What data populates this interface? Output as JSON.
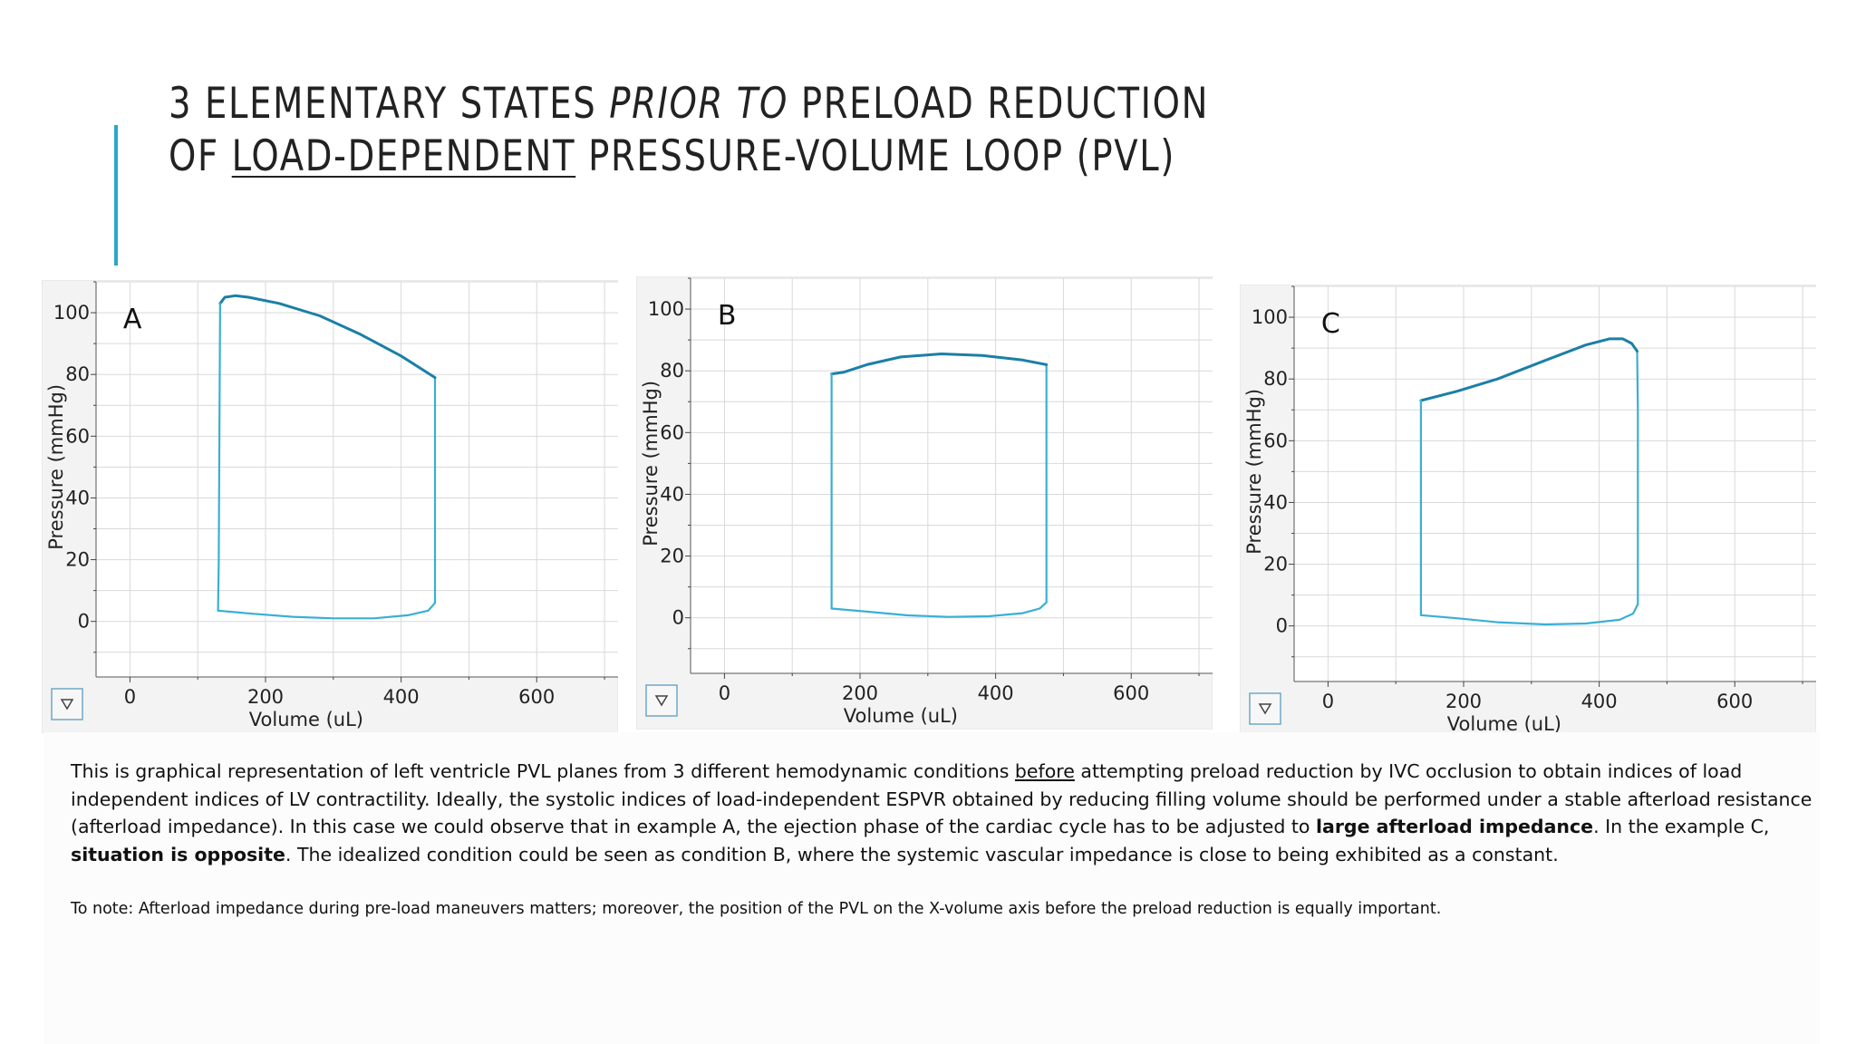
{
  "slide": {
    "title_line1_a": "3 ELEMENTARY STATES ",
    "title_line1_em": "PRIOR TO",
    "title_line1_b": " PRELOAD REDUCTION",
    "title_line2_a": "OF ",
    "title_line2_u": "LOAD-DEPENDENT",
    "title_line2_b": " PRESSURE-VOLUME LOOP (PVL)",
    "caption": {
      "t1": "This is graphical representation of left ventricle PVL planes from 3 different hemodynamic conditions ",
      "u1": "before",
      "t2": " attempting preload reduction by IVC occlusion to obtain indices of load independent indices of LV contractility. Ideally, the systolic indices of load-independent ESPVR obtained by reducing filling volume should be performed under a stable afterload resistance (afterload impedance). In this case we could observe that in example A, the ejection phase of the cardiac cycle has to be adjusted to ",
      "b1": "large afterload impedance",
      "t3": ". In the example C, ",
      "b2": "situation is opposite",
      "t4": ". The idealized condition could be seen as condition B, where the systemic vascular impedance is close to being exhibited as a constant."
    },
    "note": "To note: Afterload impedance during pre-load maneuvers matters; moreover, the position of the PVL on the X-volume axis before the preload reduction is equally important."
  },
  "colors": {
    "accent": "#2aa8c9",
    "loop_light": "#3aafd4",
    "loop_dark": "#1b7fa6",
    "grid": "#d9d9d9",
    "panel": "#f3f3f3"
  },
  "chart_data": [
    {
      "type": "line",
      "panel_label": "A",
      "xlabel": "Volume  (uL)",
      "ylabel": "Pressure  (mmHg)",
      "xlim": [
        -50,
        720
      ],
      "ylim": [
        -18,
        110
      ],
      "xticks": [
        0,
        200,
        400,
        600
      ],
      "yticks": [
        0,
        20,
        40,
        60,
        80,
        100
      ],
      "menu_icon": "dropdown-triangle-icon",
      "series": [
        {
          "role": "filling",
          "color": "#3aafd4",
          "points": [
            [
              130,
              3.5
            ],
            [
              180,
              2.5
            ],
            [
              240,
              1.5
            ],
            [
              300,
              1
            ],
            [
              360,
              1
            ],
            [
              410,
              2
            ],
            [
              440,
              3.5
            ],
            [
              450,
              6
            ]
          ]
        },
        {
          "role": "isovolumic-contraction",
          "color": "#3aafd4",
          "points": [
            [
              450,
              6
            ],
            [
              450,
              30
            ],
            [
              450,
              60
            ],
            [
              450,
              79
            ]
          ]
        },
        {
          "role": "ejection",
          "color": "#1b7fa6",
          "points": [
            [
              450,
              79
            ],
            [
              400,
              86
            ],
            [
              340,
              93
            ],
            [
              280,
              99
            ],
            [
              220,
              103
            ],
            [
              175,
              105
            ],
            [
              155,
              105.5
            ],
            [
              140,
              105
            ],
            [
              133,
              103
            ]
          ]
        },
        {
          "role": "isovolumic-relaxation",
          "color": "#3aafd4",
          "points": [
            [
              133,
              103
            ],
            [
              132,
              60
            ],
            [
              131,
              20
            ],
            [
              130,
              3.5
            ]
          ]
        }
      ]
    },
    {
      "type": "line",
      "panel_label": "B",
      "xlabel": "Volume  (uL)",
      "ylabel": "Pressure  (mmHg)",
      "xlim": [
        -50,
        720
      ],
      "ylim": [
        -18,
        110
      ],
      "xticks": [
        0,
        200,
        400,
        600
      ],
      "yticks": [
        0,
        20,
        40,
        60,
        80,
        100
      ],
      "menu_icon": "dropdown-triangle-icon",
      "series": [
        {
          "role": "filling",
          "color": "#3aafd4",
          "points": [
            [
              158,
              3
            ],
            [
              210,
              2
            ],
            [
              270,
              0.8
            ],
            [
              330,
              0.3
            ],
            [
              390,
              0.5
            ],
            [
              440,
              1.5
            ],
            [
              465,
              3
            ],
            [
              475,
              5
            ]
          ]
        },
        {
          "role": "isovolumic-contraction",
          "color": "#3aafd4",
          "points": [
            [
              475,
              5
            ],
            [
              475,
              40
            ],
            [
              475,
              82
            ]
          ]
        },
        {
          "role": "ejection",
          "color": "#1b7fa6",
          "points": [
            [
              475,
              82
            ],
            [
              440,
              83.5
            ],
            [
              380,
              85
            ],
            [
              320,
              85.5
            ],
            [
              260,
              84.5
            ],
            [
              210,
              82
            ],
            [
              175,
              79.5
            ],
            [
              158,
              79
            ]
          ]
        },
        {
          "role": "isovolumic-relaxation",
          "color": "#3aafd4",
          "points": [
            [
              158,
              79
            ],
            [
              158,
              40
            ],
            [
              158,
              3
            ]
          ]
        }
      ]
    },
    {
      "type": "line",
      "panel_label": "C",
      "xlabel": "Volume  (uL)",
      "ylabel": "Pressure  (mmHg)",
      "xlim": [
        -50,
        720
      ],
      "ylim": [
        -18,
        110
      ],
      "xticks": [
        0,
        200,
        400,
        600
      ],
      "yticks": [
        0,
        20,
        40,
        60,
        80,
        100
      ],
      "menu_icon": "dropdown-triangle-icon",
      "series": [
        {
          "role": "filling",
          "color": "#3aafd4",
          "points": [
            [
              137,
              3.5
            ],
            [
              190,
              2.5
            ],
            [
              250,
              1.2
            ],
            [
              320,
              0.5
            ],
            [
              380,
              0.8
            ],
            [
              430,
              2
            ],
            [
              450,
              4
            ],
            [
              457,
              7
            ]
          ]
        },
        {
          "role": "isovolumic-contraction",
          "color": "#3aafd4",
          "points": [
            [
              457,
              7
            ],
            [
              457,
              40
            ],
            [
              457,
              70
            ],
            [
              456,
              89
            ]
          ]
        },
        {
          "role": "ejection",
          "color": "#1b7fa6",
          "points": [
            [
              456,
              89
            ],
            [
              448,
              91.5
            ],
            [
              435,
              93
            ],
            [
              415,
              93
            ],
            [
              380,
              91
            ],
            [
              320,
              86
            ],
            [
              250,
              80
            ],
            [
              190,
              76
            ],
            [
              137,
              73
            ]
          ]
        },
        {
          "role": "isovolumic-relaxation",
          "color": "#3aafd4",
          "points": [
            [
              137,
              73
            ],
            [
              137,
              40
            ],
            [
              137,
              3.5
            ]
          ]
        }
      ]
    }
  ]
}
